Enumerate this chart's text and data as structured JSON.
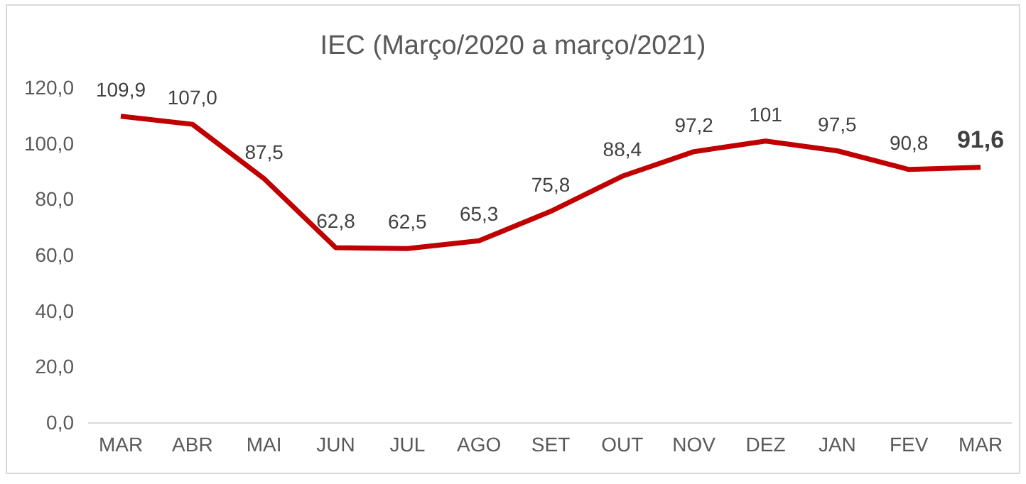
{
  "chart_data": {
    "type": "line",
    "title": "IEC (Março/2020 a março/2021)",
    "categories": [
      "MAR",
      "ABR",
      "MAI",
      "JUN",
      "JUL",
      "AGO",
      "SET",
      "OUT",
      "NOV",
      "DEZ",
      "JAN",
      "FEV",
      "MAR"
    ],
    "series": [
      {
        "color": "#c00000",
        "values": [
          109.9,
          107.0,
          87.5,
          62.8,
          62.5,
          65.3,
          75.8,
          88.4,
          97.2,
          101,
          97.5,
          90.8,
          91.6
        ],
        "value_labels": [
          "109,9",
          "107,0",
          "87,5",
          "62,8",
          "62,5",
          "65,3",
          "75,8",
          "88,4",
          "97,2",
          "101",
          "97,5",
          "90,8",
          "91,6"
        ]
      }
    ],
    "ylim": [
      0,
      120
    ],
    "yticks": [
      {
        "value": 0,
        "label": "0,0"
      },
      {
        "value": 20,
        "label": "20,0"
      },
      {
        "value": 40,
        "label": "40,0"
      },
      {
        "value": 60,
        "label": "60,0"
      },
      {
        "value": 80,
        "label": "80,0"
      },
      {
        "value": 100,
        "label": "100,0"
      },
      {
        "value": 120,
        "label": "120,0"
      }
    ],
    "grid": false,
    "marker": "none",
    "line_style": "solid"
  }
}
